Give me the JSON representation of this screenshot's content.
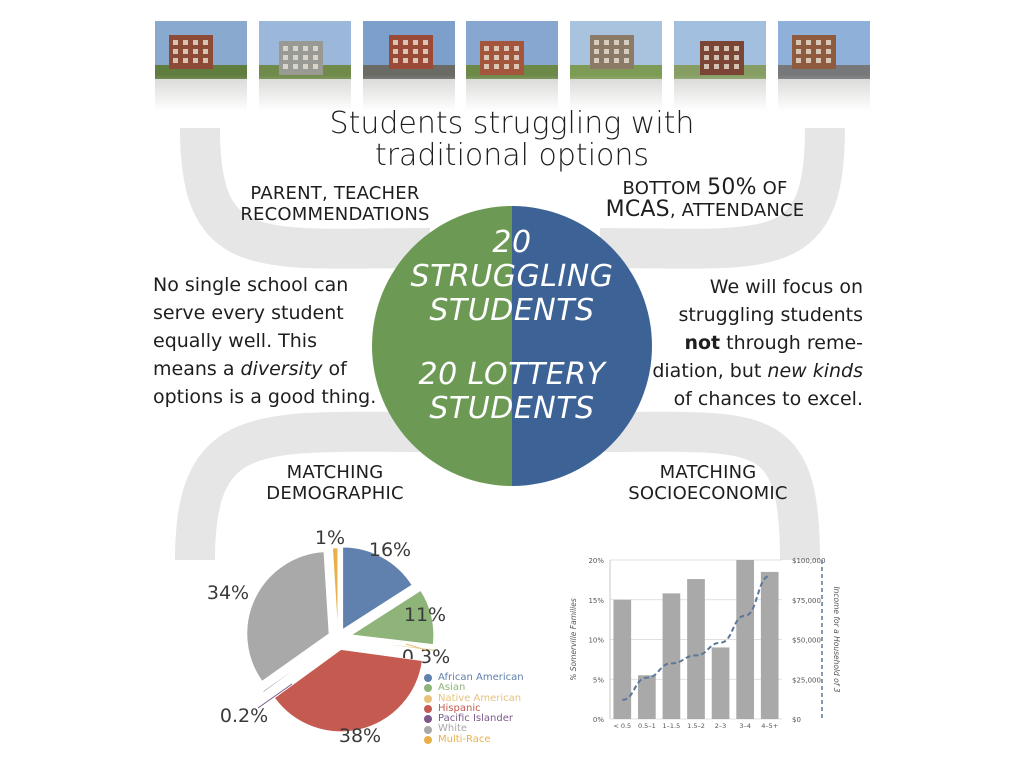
{
  "colors": {
    "green": "#6c9a54",
    "blue": "#3d6396",
    "arc_gray": "#e6e6e6",
    "bar_gray": "#a9a9a9",
    "line_blue": "#5b7799"
  },
  "photos": [
    {
      "name": "school-photo-1",
      "icon": "brick-building"
    },
    {
      "name": "school-photo-2",
      "icon": "modern-building"
    },
    {
      "name": "school-photo-3",
      "icon": "red-building"
    },
    {
      "name": "school-photo-4",
      "icon": "brick-tower"
    },
    {
      "name": "school-photo-5",
      "icon": "courtyard"
    },
    {
      "name": "school-photo-6",
      "icon": "street-building"
    },
    {
      "name": "school-photo-7",
      "icon": "church-building"
    }
  ],
  "title": {
    "line1": "Students struggling with",
    "line2": "traditional options"
  },
  "labels": {
    "parent_line1": "PARENT, TEACHER",
    "parent_line2": "RECOMMENDATIONS",
    "bottom_pre": "BOTTOM ",
    "bottom_big": "50%",
    "bottom_post": " OF",
    "bottom_big2": "MCAS",
    "bottom_line2": ", ATTENDANCE",
    "demo_line1": "MATCHING",
    "demo_line2": "DEMOGRAPHIC",
    "socio_line1": "MATCHING",
    "socio_line2": "SOCIOECONOMIC"
  },
  "circle": {
    "line1": "20",
    "line2": "STRUGGLING",
    "line3": "STUDENTS",
    "line4": "20 LOTTERY",
    "line5": "STUDENTS"
  },
  "para_left": {
    "before": "No single school can serve every student equally well. This means a ",
    "em": "diversity",
    "after": " of options is a good thing."
  },
  "para_right": {
    "before": "We will focus on struggling students ",
    "strong": "not",
    "middle": " through reme-diation, but ",
    "em": "new kinds",
    "after": " of chances to excel."
  },
  "chart_data": [
    {
      "type": "pie",
      "title": "",
      "slices": [
        {
          "label": "African American",
          "value": 16,
          "display": "16%",
          "color": "#6080ad"
        },
        {
          "label": "Asian",
          "value": 11,
          "display": "11%",
          "color": "#8fb47a"
        },
        {
          "label": "Native American",
          "value": 0.3,
          "display": "0.3%",
          "color": "#e8c27a"
        },
        {
          "label": "Hispanic",
          "value": 38,
          "display": "38%",
          "color": "#c45a50"
        },
        {
          "label": "Pacific Islander",
          "value": 0.2,
          "display": "0.2%",
          "color": "#7d5a8c"
        },
        {
          "label": "White",
          "value": 34,
          "display": "34%",
          "color": "#a9a9a9"
        },
        {
          "label": "Multi-Race",
          "value": 1,
          "display": "1%",
          "color": "#e8b04a"
        }
      ],
      "legend_position": "right"
    },
    {
      "type": "bar",
      "categories": [
        "< 0.5",
        "0.5–1",
        "1–1.5",
        "1.5–2",
        "2–3",
        "3–4",
        "4–5+"
      ],
      "series": [
        {
          "values": [
            15,
            5.5,
            15.8,
            17.6,
            9,
            20,
            18.5
          ],
          "axis": "left"
        },
        {
          "values": [
            12000,
            26000,
            35000,
            40000,
            48000,
            65000,
            90000
          ],
          "axis": "right",
          "style": "dashed-line"
        }
      ],
      "ylabel": "% Somerville Families",
      "y2label": "Income for a Household of 3",
      "ylim": [
        0,
        20
      ],
      "y2lim": [
        0,
        100000
      ],
      "yticks": [
        "0%",
        "5%",
        "10%",
        "15%",
        "20%"
      ],
      "y2ticks": [
        "$0",
        "$25,000",
        "$50,000",
        "$75,000",
        "$100,000"
      ],
      "grid": true
    }
  ]
}
